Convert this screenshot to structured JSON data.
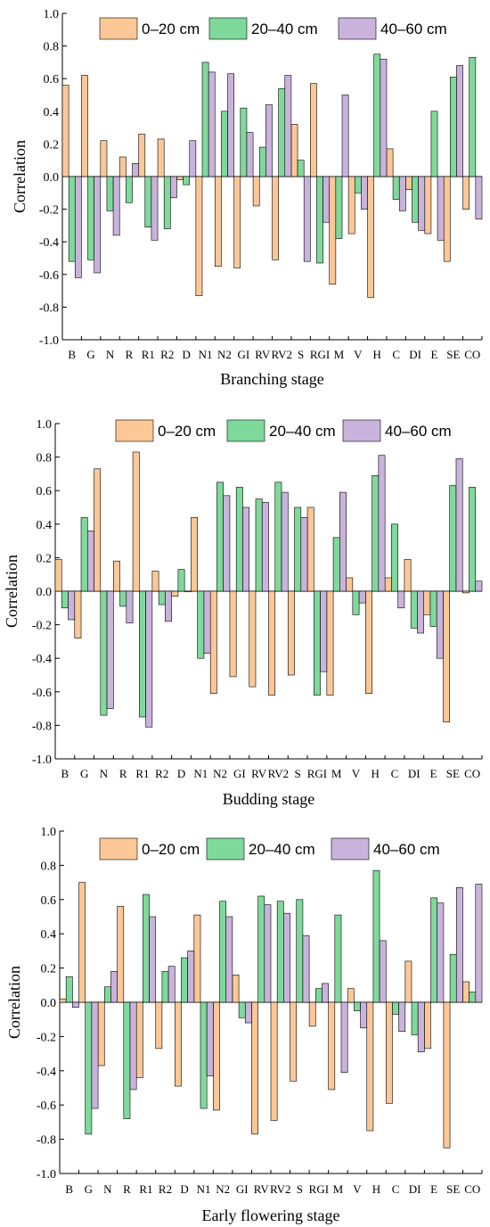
{
  "colors": {
    "s0_20": "#fbc796",
    "s20_40": "#7fd99b",
    "s40_60": "#c9b3dc"
  },
  "chart_data": [
    {
      "type": "bar",
      "xlabel": "Branching stage",
      "ylabel": "Correlation",
      "ylim": [
        -1.0,
        1.0
      ],
      "yticks": [
        "1.0",
        "0.8",
        "0.6",
        "0.4",
        "0.2",
        "0.0",
        "-0.2",
        "-0.4",
        "-0.6",
        "-0.8",
        "-1.0"
      ],
      "legend_position": "top",
      "categories": [
        "B",
        "G",
        "N",
        "R",
        "R1",
        "R2",
        "D",
        "N1",
        "N2",
        "GI",
        "RV",
        "RV2",
        "S",
        "RGI",
        "M",
        "V",
        "H",
        "C",
        "DI",
        "E",
        "SE",
        "CO"
      ],
      "series": [
        {
          "name": "0–20 cm",
          "values": [
            0.56,
            0.62,
            0.22,
            0.12,
            0.26,
            0.23,
            -0.02,
            -0.73,
            -0.55,
            -0.56,
            -0.18,
            -0.51,
            0.32,
            0.57,
            -0.66,
            -0.35,
            -0.74,
            0.17,
            -0.08,
            -0.35,
            -0.52,
            -0.2
          ]
        },
        {
          "name": "20–40 cm",
          "values": [
            -0.52,
            -0.51,
            -0.21,
            -0.16,
            -0.31,
            -0.32,
            -0.05,
            0.7,
            0.4,
            0.42,
            0.18,
            0.54,
            0.1,
            -0.53,
            -0.38,
            -0.1,
            0.75,
            -0.14,
            -0.28,
            0.4,
            0.61,
            0.73
          ]
        },
        {
          "name": "40–60 cm",
          "values": [
            -0.62,
            -0.59,
            -0.36,
            0.08,
            -0.39,
            -0.13,
            0.22,
            0.64,
            0.63,
            0.27,
            0.44,
            0.62,
            -0.52,
            -0.28,
            0.5,
            -0.2,
            0.72,
            -0.21,
            -0.33,
            -0.39,
            0.68,
            -0.26
          ]
        }
      ]
    },
    {
      "type": "bar",
      "xlabel": "Budding stage",
      "ylabel": "Correlation",
      "ylim": [
        -1.0,
        1.0
      ],
      "yticks": [
        "1.0",
        "0.8",
        "0.6",
        "0.4",
        "0.2",
        "0.0",
        "-0.2",
        "-0.4",
        "-0.6",
        "-0.8",
        "-1.0"
      ],
      "legend_position": "top",
      "categories": [
        "B",
        "G",
        "N",
        "R",
        "R1",
        "R2",
        "D",
        "N1",
        "N2",
        "GI",
        "RV",
        "RV2",
        "S",
        "RGI",
        "M",
        "V",
        "H",
        "C",
        "DI",
        "E",
        "SE",
        "CO"
      ],
      "series": [
        {
          "name": "0–20 cm",
          "values": [
            0.19,
            -0.28,
            0.73,
            0.18,
            0.83,
            0.12,
            -0.03,
            0.44,
            -0.61,
            -0.51,
            -0.57,
            -0.62,
            -0.5,
            0.5,
            -0.62,
            0.08,
            -0.61,
            0.08,
            0.19,
            -0.14,
            -0.78,
            -0.01
          ]
        },
        {
          "name": "20–40 cm",
          "values": [
            -0.1,
            0.44,
            -0.74,
            -0.09,
            -0.75,
            -0.08,
            0.13,
            -0.4,
            0.65,
            0.62,
            0.55,
            0.65,
            0.5,
            -0.62,
            0.32,
            -0.14,
            0.69,
            0.4,
            -0.22,
            -0.21,
            0.63,
            0.62
          ]
        },
        {
          "name": "40–60 cm",
          "values": [
            -0.17,
            0.36,
            -0.7,
            -0.19,
            -0.81,
            -0.18,
            0.0,
            -0.37,
            0.57,
            0.5,
            0.53,
            0.59,
            0.44,
            -0.48,
            0.59,
            -0.07,
            0.81,
            -0.1,
            -0.25,
            -0.4,
            0.79,
            0.06
          ]
        }
      ]
    },
    {
      "type": "bar",
      "xlabel": "Early flowering stage",
      "ylabel": "Correlation",
      "ylim": [
        -1.0,
        1.0
      ],
      "yticks": [
        "1.0",
        "0.8",
        "0.6",
        "0.4",
        "0.2",
        "0.0",
        "-0.2",
        "-0.4",
        "-0.6",
        "-0.8",
        "-1.0"
      ],
      "legend_position": "top",
      "categories": [
        "B",
        "G",
        "N",
        "R",
        "R1",
        "R2",
        "D",
        "N1",
        "N2",
        "GI",
        "RV",
        "RV2",
        "S",
        "RGI",
        "M",
        "V",
        "H",
        "C",
        "DI",
        "E",
        "SE",
        "CO"
      ],
      "series": [
        {
          "name": "0–20 cm",
          "values": [
            0.02,
            0.7,
            -0.37,
            0.56,
            -0.44,
            -0.27,
            -0.49,
            0.51,
            -0.63,
            0.16,
            -0.77,
            -0.69,
            -0.46,
            -0.14,
            -0.51,
            0.08,
            -0.75,
            -0.59,
            0.24,
            -0.27,
            -0.85,
            0.12
          ]
        },
        {
          "name": "20–40 cm",
          "values": [
            0.15,
            -0.77,
            0.09,
            -0.68,
            0.63,
            0.18,
            0.26,
            -0.62,
            0.59,
            -0.09,
            0.62,
            0.59,
            0.6,
            0.08,
            0.51,
            -0.05,
            0.77,
            -0.07,
            -0.19,
            0.61,
            0.28,
            0.06
          ]
        },
        {
          "name": "40–60 cm",
          "values": [
            -0.03,
            -0.62,
            0.18,
            -0.51,
            0.5,
            0.21,
            0.3,
            -0.43,
            0.5,
            -0.12,
            0.57,
            0.52,
            0.39,
            0.11,
            -0.41,
            -0.15,
            0.36,
            -0.17,
            -0.29,
            0.58,
            0.67,
            0.69
          ]
        }
      ]
    }
  ]
}
